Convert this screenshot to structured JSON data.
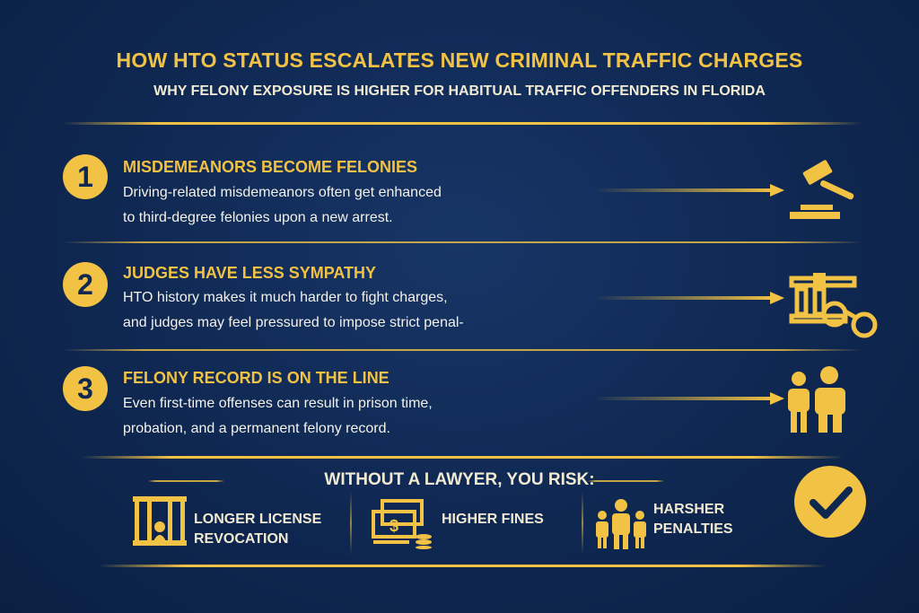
{
  "title": "HOW HTO STATUS ESCALATES NEW CRIMINAL TRAFFIC CHARGES",
  "subtitle": "WHY FELONY EXPOSURE IS HIGHER FOR HABITUAL TRAFFIC OFFENDERS IN FLORIDA",
  "colors": {
    "background": "#0f2852",
    "accent": "#f2c244",
    "text": "#f3f1ea"
  },
  "items": [
    {
      "number": "1",
      "heading": "MISDEMEANORS BECOME FELONIES",
      "lines": [
        "Driving-related misdemeanors often get enhanced",
        "to third-degree felonies upon a new arrest."
      ],
      "icon": "gavel-icon"
    },
    {
      "number": "2",
      "heading": "JUDGES HAVE LESS SYMPATHY",
      "lines": [
        "HTO history makes it much harder to fight charges,",
        "and judges may feel pressured to impose strict penal-"
      ],
      "icon": "courthouse-handcuffs-icon"
    },
    {
      "number": "3",
      "heading": "FELONY RECORD IS ON THE LINE",
      "lines": [
        "Even first-time offenses can result in prison time,",
        "probation, and a permanent felony record."
      ],
      "icon": "people-icon"
    }
  ],
  "risks": {
    "title": "WITHOUT A LAWYER, YOU RISK:",
    "items": [
      {
        "lines": [
          "LONGER LICENSE",
          "REVOCATION"
        ],
        "icon": "jail-icon"
      },
      {
        "lines": [
          "HIGHER FINES"
        ],
        "icon": "money-icon"
      },
      {
        "lines": [
          "HARSHER",
          "PENALTIES"
        ],
        "icon": "family-icon"
      }
    ],
    "badge_icon": "checkmark-icon"
  }
}
